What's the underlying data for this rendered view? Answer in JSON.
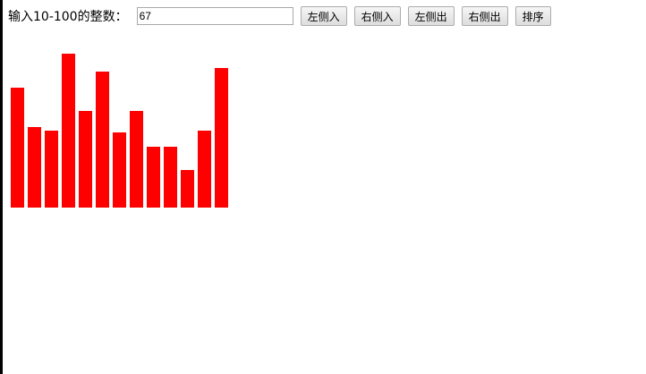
{
  "form": {
    "label": "输入10-100的整数：",
    "input_value": "67",
    "buttons": [
      {
        "id": "left-in",
        "label": "左侧入"
      },
      {
        "id": "right-in",
        "label": "右侧入"
      },
      {
        "id": "left-out",
        "label": "左侧出"
      },
      {
        "id": "right-out",
        "label": "右侧出"
      },
      {
        "id": "sort",
        "label": "排序"
      }
    ]
  },
  "queue": {
    "bar_color": "#ff0000",
    "values": [
      67,
      45,
      43,
      86,
      54,
      76,
      42,
      54,
      34,
      34,
      21,
      43,
      78
    ]
  }
}
